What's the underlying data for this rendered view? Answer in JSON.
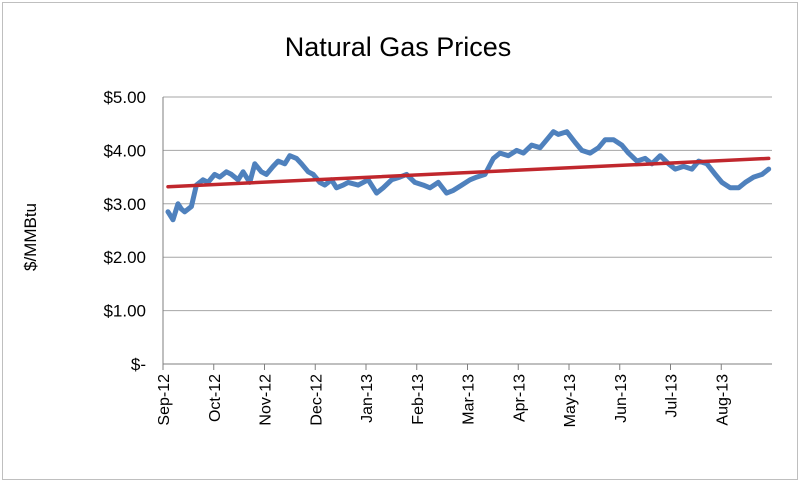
{
  "chart_data": {
    "type": "line",
    "title": "Natural Gas Prices",
    "ylabel": "$/MMBtu",
    "xlabel": "",
    "ylim": [
      0,
      5
    ],
    "y_ticks": [
      "$-",
      "$1.00",
      "$2.00",
      "$3.00",
      "$4.00",
      "$5.00"
    ],
    "y_tick_values": [
      0,
      1,
      2,
      3,
      4,
      5
    ],
    "categories": [
      "Sep-12",
      "Oct-12",
      "Nov-12",
      "Dec-12",
      "Jan-13",
      "Feb-13",
      "Mar-13",
      "Apr-13",
      "May-13",
      "Jun-13",
      "Jul-13",
      "Aug-13"
    ],
    "grid": "horizontal",
    "legend": "none",
    "series": [
      {
        "type": "line",
        "color": "#4f81bd",
        "x": [
          "2012-09-04",
          "2012-09-07",
          "2012-09-10",
          "2012-09-12",
          "2012-09-14",
          "2012-09-18",
          "2012-09-21",
          "2012-09-25",
          "2012-09-28",
          "2012-10-02",
          "2012-10-05",
          "2012-10-09",
          "2012-10-12",
          "2012-10-16",
          "2012-10-19",
          "2012-10-23",
          "2012-10-26",
          "2012-10-30",
          "2012-11-02",
          "2012-11-06",
          "2012-11-09",
          "2012-11-13",
          "2012-11-16",
          "2012-11-20",
          "2012-11-23",
          "2012-11-27",
          "2012-11-30",
          "2012-12-04",
          "2012-12-07",
          "2012-12-11",
          "2012-12-14",
          "2012-12-18",
          "2012-12-21",
          "2012-12-27",
          "2013-01-02",
          "2013-01-07",
          "2013-01-11",
          "2013-01-16",
          "2013-01-21",
          "2013-01-25",
          "2013-01-30",
          "2013-02-04",
          "2013-02-08",
          "2013-02-13",
          "2013-02-18",
          "2013-02-22",
          "2013-02-27",
          "2013-03-04",
          "2013-03-08",
          "2013-03-13",
          "2013-03-18",
          "2013-03-22",
          "2013-03-27",
          "2013-04-01",
          "2013-04-05",
          "2013-04-10",
          "2013-04-15",
          "2013-04-19",
          "2013-04-23",
          "2013-04-26",
          "2013-05-01",
          "2013-05-06",
          "2013-05-10",
          "2013-05-15",
          "2013-05-20",
          "2013-05-24",
          "2013-05-29",
          "2013-06-03",
          "2013-06-07",
          "2013-06-12",
          "2013-06-17",
          "2013-06-21",
          "2013-06-26",
          "2013-07-01",
          "2013-07-05",
          "2013-07-10",
          "2013-07-15",
          "2013-07-19",
          "2013-07-24",
          "2013-07-29",
          "2013-08-02",
          "2013-08-07",
          "2013-08-12",
          "2013-08-16",
          "2013-08-21",
          "2013-08-26",
          "2013-08-30"
        ],
        "y": [
          2.85,
          2.7,
          3.0,
          2.9,
          2.85,
          2.95,
          3.35,
          3.45,
          3.4,
          3.55,
          3.5,
          3.6,
          3.55,
          3.45,
          3.6,
          3.4,
          3.75,
          3.6,
          3.55,
          3.7,
          3.8,
          3.75,
          3.9,
          3.85,
          3.75,
          3.6,
          3.55,
          3.4,
          3.35,
          3.45,
          3.3,
          3.35,
          3.4,
          3.35,
          3.45,
          3.2,
          3.3,
          3.45,
          3.5,
          3.55,
          3.4,
          3.35,
          3.3,
          3.4,
          3.2,
          3.25,
          3.35,
          3.45,
          3.5,
          3.55,
          3.85,
          3.95,
          3.9,
          4.0,
          3.95,
          4.1,
          4.05,
          4.2,
          4.35,
          4.3,
          4.35,
          4.15,
          4.0,
          3.95,
          4.05,
          4.2,
          4.2,
          4.1,
          3.95,
          3.8,
          3.85,
          3.75,
          3.9,
          3.75,
          3.65,
          3.7,
          3.65,
          3.8,
          3.75,
          3.55,
          3.4,
          3.3,
          3.3,
          3.4,
          3.5,
          3.55,
          3.65
        ]
      },
      {
        "type": "trendline",
        "color": "#c0272d",
        "x": [
          "2012-09-04",
          "2013-08-30"
        ],
        "y": [
          3.32,
          3.85
        ]
      }
    ]
  }
}
